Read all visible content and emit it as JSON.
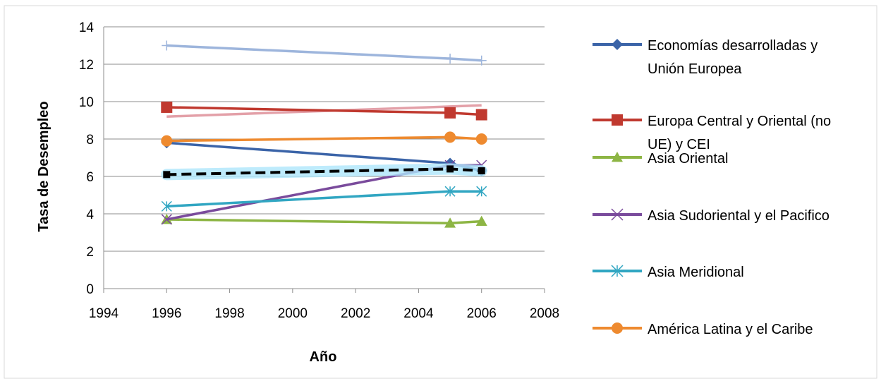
{
  "chart_data": {
    "type": "line",
    "title": "",
    "xlabel": "Año",
    "ylabel": "Tasa de Desempleo",
    "xlim": [
      1994,
      2008
    ],
    "ylim": [
      0,
      14
    ],
    "xticks": [
      "1994",
      "1996",
      "1998",
      "2000",
      "2002",
      "2004",
      "2006",
      "2008"
    ],
    "yticks": [
      "0",
      "2",
      "4",
      "6",
      "8",
      "10",
      "12",
      "14"
    ],
    "grid": "horizontal",
    "legend_position": "right",
    "series": [
      {
        "name": "Economías desarrolladas y Unión Europea",
        "legend_lines": [
          "Economías desarrolladas y",
          "Unión Europea"
        ],
        "color": "#3b64a8",
        "marker": "diamond",
        "x": [
          1996,
          2005,
          2006
        ],
        "y": [
          7.8,
          6.7,
          6.3
        ]
      },
      {
        "name": "Europa Central y Oriental (no UE) y CEI",
        "legend_lines": [
          "Europa Central y Oriental (no",
          "UE) y CEI"
        ],
        "color": "#c0392f",
        "marker": "square",
        "x": [
          1996,
          2005,
          2006
        ],
        "y": [
          9.7,
          9.4,
          9.3
        ]
      },
      {
        "name": "Asia Oriental",
        "legend_lines": [
          "Asia Oriental"
        ],
        "color": "#8db544",
        "marker": "triangle",
        "x": [
          1996,
          2005,
          2006
        ],
        "y": [
          3.7,
          3.5,
          3.6
        ]
      },
      {
        "name": "Asia Sudoriental y el Pacifico",
        "legend_lines": [
          "Asia Sudoriental y el Pacifico"
        ],
        "color": "#7a4b9c",
        "marker": "x",
        "x": [
          1996,
          2005,
          2006
        ],
        "y": [
          3.7,
          6.6,
          6.6
        ]
      },
      {
        "name": "Asia Meridional",
        "legend_lines": [
          "Asia Meridional"
        ],
        "color": "#31a6c2",
        "marker": "asterisk",
        "x": [
          1996,
          2005,
          2006
        ],
        "y": [
          4.4,
          5.2,
          5.2
        ]
      },
      {
        "name": "América Latina y el Caribe",
        "legend_lines": [
          "América Latina y el Caribe"
        ],
        "color": "#ee8a2f",
        "marker": "circle",
        "x": [
          1996,
          2005,
          2006
        ],
        "y": [
          7.9,
          8.1,
          8.0
        ]
      }
    ],
    "extra_series": [
      {
        "color": "#9db5dc",
        "marker": "plus",
        "style": "solid",
        "x": [
          1996,
          2005,
          2006
        ],
        "y": [
          13.0,
          12.3,
          12.2
        ]
      },
      {
        "color": "#e3a0a8",
        "marker": "none",
        "style": "solid",
        "x": [
          1996,
          2006
        ],
        "y": [
          9.2,
          9.8
        ]
      },
      {
        "color": "#000000",
        "marker": "square",
        "style": "dashed",
        "glow": "#aee6fb",
        "x": [
          1996,
          2005,
          2006
        ],
        "y": [
          6.1,
          6.4,
          6.3
        ]
      }
    ]
  }
}
